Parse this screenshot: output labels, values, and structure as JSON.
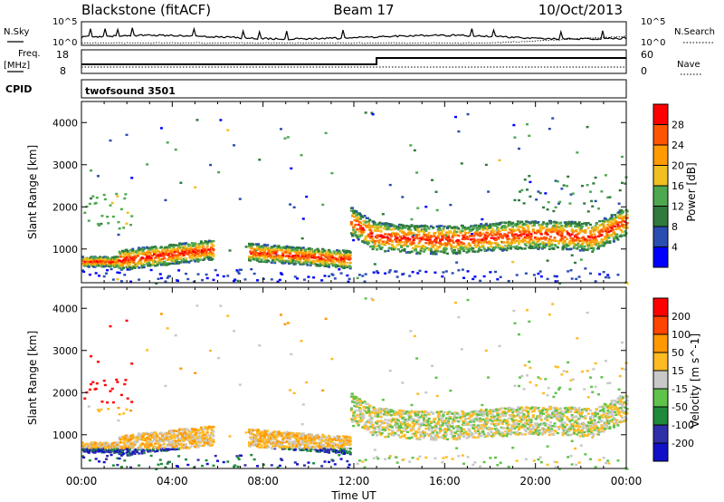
{
  "header": {
    "station": "Blackstone (fitACF)",
    "beam": "Beam 17",
    "date": "10/Oct/2013"
  },
  "top_panel": {
    "nsky_label": "N.Sky",
    "nsearch_label": "N.Search",
    "left_ticks": [
      "10^5",
      "10^0"
    ],
    "right_ticks": [
      "10^5",
      "10^0"
    ]
  },
  "freq_panel": {
    "freq_label_line1": "Freq.",
    "freq_label_line2": "[MHz]",
    "nave_label": "Nave",
    "left_ticks": [
      "18",
      "8"
    ],
    "right_ticks": [
      "60",
      "0"
    ]
  },
  "cpid_panel": {
    "cpid_label": "CPID",
    "program": "twofsound 3501"
  },
  "colors": {
    "scale_power": [
      "#0000ff",
      "#2a4db0",
      "#2f7a3c",
      "#4fa84f",
      "#f0c020",
      "#ff9a00",
      "#ff5500",
      "#ff0000"
    ],
    "scale_velocity": [
      "#ff0000",
      "#ff4400",
      "#ff9900",
      "#ffbb22",
      "#c8c8c8",
      "#5fc24a",
      "#1f8a3a",
      "#2f2fa8",
      "#1010c8"
    ]
  },
  "chart_data": [
    {
      "type": "heatmap",
      "title": "",
      "xlabel": "Time UT",
      "ylabel": "Slant Range [km]",
      "colorbar_label": "Power [dB]",
      "colorbar_ticks": [
        "4",
        "8",
        "12",
        "16",
        "20",
        "24",
        "28"
      ],
      "x_range": [
        "00:00",
        "24:00"
      ],
      "y_range": [
        200,
        4500
      ],
      "y_ticks": [
        1000,
        2000,
        3000,
        4000
      ],
      "x_ticks": [
        "00:00",
        "04:00",
        "08:00",
        "12:00",
        "16:00",
        "20:00",
        "00:00"
      ]
    },
    {
      "type": "heatmap",
      "title": "",
      "xlabel": "Time UT",
      "ylabel": "Slant Range [km]",
      "colorbar_label": "Velocity [m s^-1]",
      "colorbar_ticks": [
        "200",
        "100",
        "50",
        "15",
        "-15",
        "-50",
        "-100",
        "-200"
      ],
      "x_range": [
        "00:00",
        "24:00"
      ],
      "y_range": [
        200,
        4500
      ],
      "y_ticks": [
        1000,
        2000,
        3000,
        4000
      ],
      "x_ticks": [
        "00:00",
        "04:00",
        "08:00",
        "12:00",
        "16:00",
        "20:00",
        "00:00"
      ]
    }
  ]
}
